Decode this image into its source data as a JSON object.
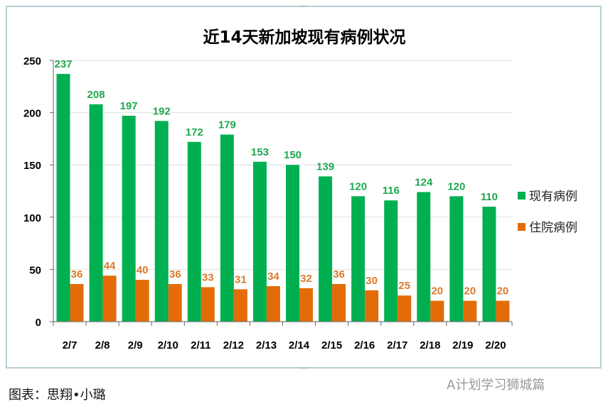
{
  "chart_data": {
    "type": "bar",
    "title": "近14天新加坡现有病例状况",
    "categories": [
      "2/7",
      "2/8",
      "2/9",
      "2/10",
      "2/11",
      "2/12",
      "2/13",
      "2/14",
      "2/15",
      "2/16",
      "2/17",
      "2/18",
      "2/19",
      "2/20"
    ],
    "series": [
      {
        "name": "现有病例",
        "color": "#00b050",
        "label_color": "#1ea84f",
        "values": [
          237,
          208,
          197,
          192,
          172,
          179,
          153,
          150,
          139,
          120,
          116,
          124,
          120,
          110
        ]
      },
      {
        "name": "住院病例",
        "color": "#e36c09",
        "label_color": "#d97a2a",
        "values": [
          36,
          44,
          40,
          36,
          33,
          31,
          34,
          32,
          36,
          30,
          25,
          20,
          20,
          20
        ]
      }
    ],
    "ylim": [
      0,
      250
    ],
    "yticks": [
      0,
      50,
      100,
      150,
      200,
      250
    ],
    "grid": true,
    "legend": "right"
  },
  "caption": "图表：思翔•小璐",
  "watermark": "A计划学习狮城篇"
}
